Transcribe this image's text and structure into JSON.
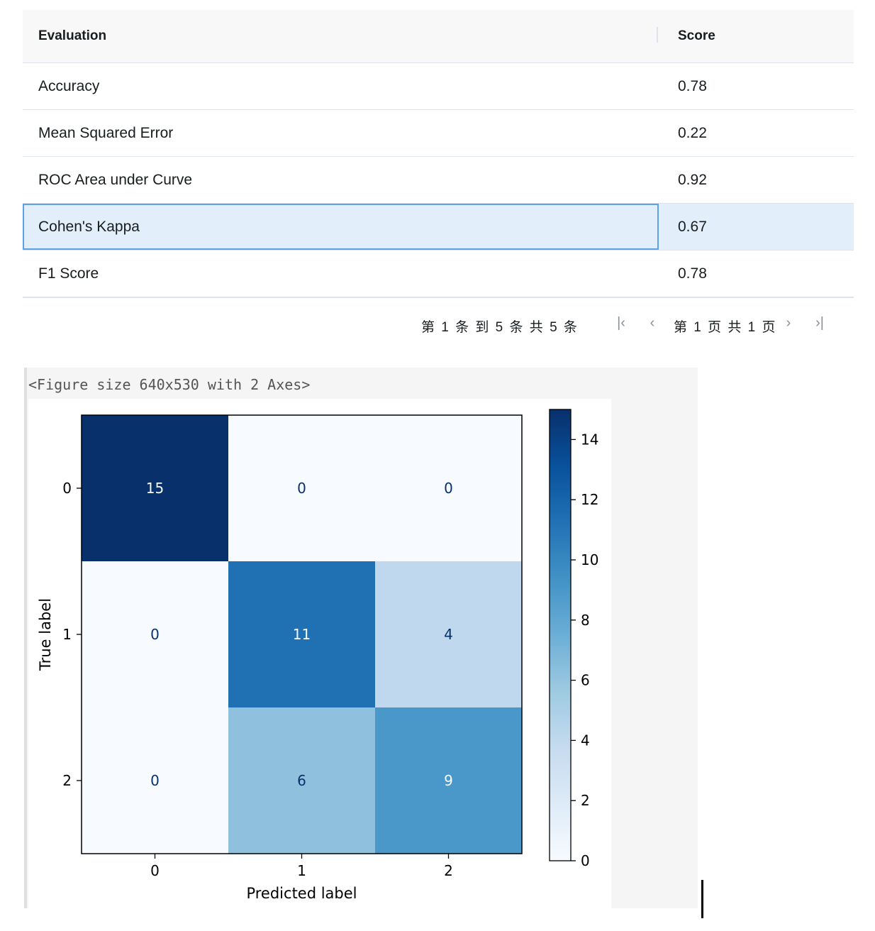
{
  "table": {
    "headers": [
      "Evaluation",
      "Score"
    ],
    "rows": [
      {
        "metric": "Accuracy",
        "score": "0.78"
      },
      {
        "metric": "Mean Squared Error",
        "score": "0.22"
      },
      {
        "metric": "ROC Area under Curve",
        "score": "0.92"
      },
      {
        "metric": "Cohen's Kappa",
        "score": "0.67"
      },
      {
        "metric": "F1 Score",
        "score": "0.78"
      }
    ],
    "selected_row": 3
  },
  "pager": {
    "summary": "第 1 条 到 5 条 共 5 条",
    "page": "第 1 页 共 1 页",
    "first_icon": "first-page-icon",
    "prev_icon": "previous-page-icon",
    "next_icon": "next-page-icon",
    "last_icon": "last-page-icon"
  },
  "figure": {
    "caption": "<Figure size 640x530 with 2 Axes>"
  },
  "chart_data": {
    "type": "heatmap",
    "title": "",
    "xlabel": "Predicted label",
    "ylabel": "True label",
    "x_ticks": [
      "0",
      "1",
      "2"
    ],
    "y_ticks": [
      "0",
      "1",
      "2"
    ],
    "matrix": [
      [
        15,
        0,
        0
      ],
      [
        0,
        11,
        4
      ],
      [
        0,
        6,
        9
      ]
    ],
    "colormap": "Blues",
    "colorbar": {
      "min": 0,
      "max": 15,
      "ticks": [
        0,
        2,
        4,
        6,
        8,
        10,
        12,
        14
      ]
    },
    "cell_colors": [
      [
        "#08306b",
        "#f7fbff",
        "#f7fbff"
      ],
      [
        "#f7fbff",
        "#2070b4",
        "#c0d8ed"
      ],
      [
        "#f7fbff",
        "#8fc1de",
        "#4a98c9"
      ]
    ],
    "colorbar_gradient": [
      "#f7fbff",
      "#deebf7",
      "#c6dbef",
      "#9ecae1",
      "#6baed6",
      "#4292c6",
      "#2171b5",
      "#08519c",
      "#08306b"
    ],
    "text_dark": "#08306b",
    "text_light": "#f7fbff"
  }
}
